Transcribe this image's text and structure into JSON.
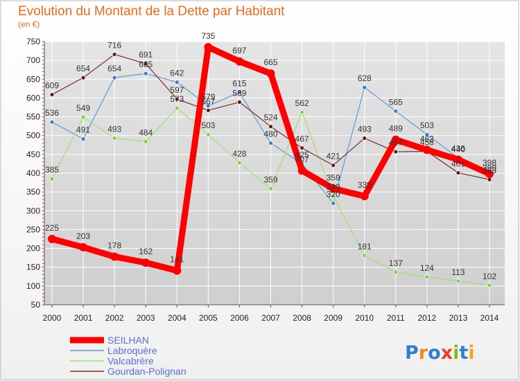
{
  "header": {
    "title": "Evolution du Montant de la Dette par Habitant",
    "subtitle": "(en €)"
  },
  "logo": {
    "text": "Proxiti"
  },
  "colors": {
    "title": "#f06a1a",
    "axis": "#555555",
    "grid": "#ffffff",
    "legend_text": "#5b6fd6"
  },
  "chart_data": {
    "type": "line",
    "title": "Evolution du Montant de la Dette par Habitant",
    "subtitle": "(en €)",
    "xlabel": "",
    "ylabel": "",
    "x": [
      "2000",
      "2001",
      "2002",
      "2003",
      "2004",
      "2005",
      "2006",
      "2007",
      "2008",
      "2009",
      "2010",
      "2011",
      "2012",
      "2013",
      "2014"
    ],
    "ylim": [
      50,
      750
    ],
    "yticks": [
      50,
      100,
      150,
      200,
      250,
      300,
      350,
      400,
      450,
      500,
      550,
      600,
      650,
      700,
      750
    ],
    "grid": true,
    "legend": "bottom-left",
    "series": [
      {
        "name": "Labroquère",
        "color": "#5a9bd4",
        "point_color": "#3d7cc9",
        "values": [
          536,
          491,
          654,
          665,
          642,
          579,
          615,
          480,
          425,
          320,
          628,
          565,
          503,
          440,
          390
        ]
      },
      {
        "name": "Valcabrère",
        "color": "#9ee06a",
        "point_color": "#7cd044",
        "values": [
          385,
          549,
          493,
          484,
          573,
          503,
          428,
          359,
          562,
          339,
          181,
          137,
          124,
          113,
          102
        ]
      },
      {
        "name": "Gourdan-Polignan",
        "color": "#7a2a2a",
        "point_color": "#5e1a1a",
        "values": [
          609,
          654,
          716,
          691,
          597,
          567,
          589,
          524,
          467,
          421,
          493,
          457,
          458,
          401,
          383
        ]
      },
      {
        "name": "SEILHAN",
        "color": "#ff0000",
        "point_color": "#ff0000",
        "values": [
          225,
          203,
          178,
          162,
          141,
          735,
          697,
          665,
          407,
          359,
          339,
          489,
          462,
          436,
          398
        ]
      }
    ],
    "legend_order": [
      "SEILHAN",
      "Labroquère",
      "Valcabrère",
      "Gourdan-Polignan"
    ]
  }
}
